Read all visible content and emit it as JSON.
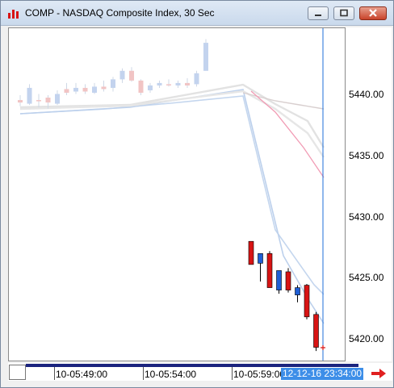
{
  "window": {
    "title": "COMP - NASDAQ Composite Index, 30 Sec",
    "icons": {
      "app": "chart-app-icon",
      "minimize": "minimize-icon",
      "maximize": "maximize-icon",
      "close": "close-icon"
    }
  },
  "chart": {
    "y_labels": [
      "5440.00",
      "5435.00",
      "5430.00",
      "5425.00",
      "5420.00"
    ],
    "x_labels": [
      "10-05:49:00",
      "10-05:54:00",
      "10-05:59:00"
    ],
    "cursor_time": "12-12-16 23:34:00",
    "scroll_arrow_icon": "right-arrow-icon",
    "colors": {
      "up": "#1f5fd6",
      "down": "#d81414",
      "faded_up": "#c3d3ee",
      "faded_down": "#f1c4c4",
      "cursor": "#1f6fd8",
      "nav": "#1a237e"
    }
  },
  "chart_data": {
    "type": "candlestick",
    "ylim": [
      5418,
      5446
    ],
    "candles": [
      {
        "o": 5439.6,
        "h": 5440.0,
        "l": 5439.1,
        "c": 5439.4,
        "faded": true
      },
      {
        "o": 5439.3,
        "h": 5440.9,
        "l": 5439.2,
        "c": 5440.6,
        "faded": true
      },
      {
        "o": 5439.6,
        "h": 5440.1,
        "l": 5439.0,
        "c": 5439.5,
        "faded": true
      },
      {
        "o": 5439.8,
        "h": 5440.0,
        "l": 5438.9,
        "c": 5439.4,
        "faded": true
      },
      {
        "o": 5439.3,
        "h": 5440.4,
        "l": 5439.2,
        "c": 5440.1,
        "faded": true
      },
      {
        "o": 5440.5,
        "h": 5441.0,
        "l": 5440.0,
        "c": 5440.2,
        "faded": true
      },
      {
        "o": 5440.3,
        "h": 5441.0,
        "l": 5440.1,
        "c": 5440.6,
        "faded": true
      },
      {
        "o": 5440.6,
        "h": 5440.9,
        "l": 5440.1,
        "c": 5440.3,
        "faded": true
      },
      {
        "o": 5440.2,
        "h": 5441.0,
        "l": 5440.1,
        "c": 5440.7,
        "faded": true
      },
      {
        "o": 5440.7,
        "h": 5441.2,
        "l": 5440.3,
        "c": 5440.5,
        "faded": true
      },
      {
        "o": 5440.6,
        "h": 5441.5,
        "l": 5440.3,
        "c": 5441.3,
        "faded": true
      },
      {
        "o": 5441.3,
        "h": 5442.2,
        "l": 5441.0,
        "c": 5442.0,
        "faded": true
      },
      {
        "o": 5442.0,
        "h": 5442.3,
        "l": 5441.1,
        "c": 5441.2,
        "faded": true
      },
      {
        "o": 5441.2,
        "h": 5441.3,
        "l": 5440.0,
        "c": 5440.2,
        "faded": true
      },
      {
        "o": 5440.4,
        "h": 5441.0,
        "l": 5440.2,
        "c": 5440.8,
        "faded": true
      },
      {
        "o": 5440.8,
        "h": 5441.2,
        "l": 5440.6,
        "c": 5441.0,
        "faded": true
      },
      {
        "o": 5440.9,
        "h": 5441.3,
        "l": 5440.7,
        "c": 5440.8,
        "faded": true
      },
      {
        "o": 5440.8,
        "h": 5441.2,
        "l": 5440.6,
        "c": 5441.0,
        "faded": true
      },
      {
        "o": 5441.0,
        "h": 5441.4,
        "l": 5440.6,
        "c": 5440.8,
        "faded": true
      },
      {
        "o": 5440.9,
        "h": 5442.0,
        "l": 5440.7,
        "c": 5441.8,
        "faded": true
      },
      {
        "o": 5442.0,
        "h": 5444.6,
        "l": 5442.0,
        "c": 5444.3,
        "faded": true
      },
      {
        "o": 5428.0,
        "h": 5428.0,
        "l": 5426.1,
        "c": 5426.1,
        "faded": false
      },
      {
        "o": 5426.2,
        "h": 5427.0,
        "l": 5424.7,
        "c": 5427.0,
        "faded": false
      },
      {
        "o": 5427.0,
        "h": 5427.2,
        "l": 5424.2,
        "c": 5424.2,
        "faded": false
      },
      {
        "o": 5424.0,
        "h": 5425.6,
        "l": 5423.7,
        "c": 5425.6,
        "faded": false
      },
      {
        "o": 5425.5,
        "h": 5425.8,
        "l": 5423.8,
        "c": 5424.0,
        "faded": false
      },
      {
        "o": 5423.6,
        "h": 5424.4,
        "l": 5423.0,
        "c": 5424.2,
        "faded": false
      },
      {
        "o": 5424.4,
        "h": 5424.5,
        "l": 5421.6,
        "c": 5421.8,
        "faded": false
      },
      {
        "o": 5422.0,
        "h": 5422.2,
        "l": 5419.0,
        "c": 5419.3,
        "faded": false
      }
    ]
  }
}
